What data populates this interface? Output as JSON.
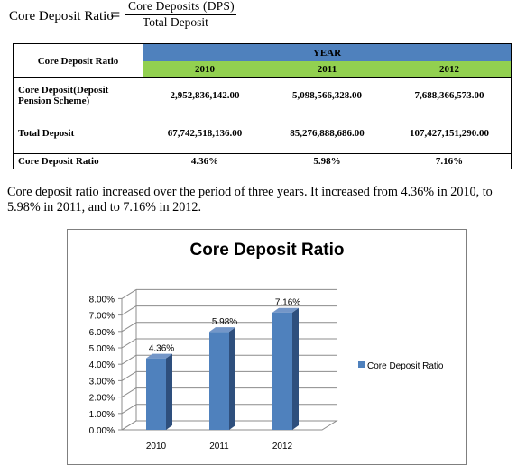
{
  "formula": {
    "lhs": "Core Deposit Ratio",
    "equals": "=",
    "numerator": "Core Deposits (DPS)",
    "denominator": "Total Deposit"
  },
  "table": {
    "header_label": "Core Deposit Ratio",
    "group_header": "YEAR",
    "years": [
      "2010",
      "2011",
      "2012"
    ],
    "rows": [
      {
        "label": "Core Deposit(Deposit Pension Scheme)",
        "values": [
          "2,952,836,142.00",
          "5,098,566,328.00",
          "7,688,366,573.00"
        ]
      },
      {
        "label": "Total Deposit",
        "values": [
          "67,742,518,136.00",
          "85,276,888,686.00",
          "107,427,151,290.00"
        ]
      },
      {
        "label": "Core Deposit Ratio",
        "values": [
          "4.36%",
          "5.98%",
          "7.16%"
        ]
      }
    ]
  },
  "paragraph": "Core deposit ratio increased over the period of three years. It increased from 4.36% in 2010, to 5.98% in 2011, and to 7.16% in 2012.",
  "chart_data": {
    "type": "bar",
    "title": "Core Deposit Ratio",
    "categories": [
      "2010",
      "2011",
      "2012"
    ],
    "series": [
      {
        "name": "Core Deposit Ratio",
        "values": [
          4.36,
          5.98,
          7.16
        ],
        "labels": [
          "4.36%",
          "5.98%",
          "7.16%"
        ]
      }
    ],
    "ylim": [
      0,
      8
    ],
    "yticks": [
      "0.00%",
      "1.00%",
      "2.00%",
      "3.00%",
      "4.00%",
      "5.00%",
      "6.00%",
      "7.00%",
      "8.00%"
    ],
    "legend": "right",
    "grid": true,
    "colors": {
      "bar": "#4f81bd",
      "bar_side": "#2e4f7d",
      "bar_top": "#7396c8"
    }
  }
}
